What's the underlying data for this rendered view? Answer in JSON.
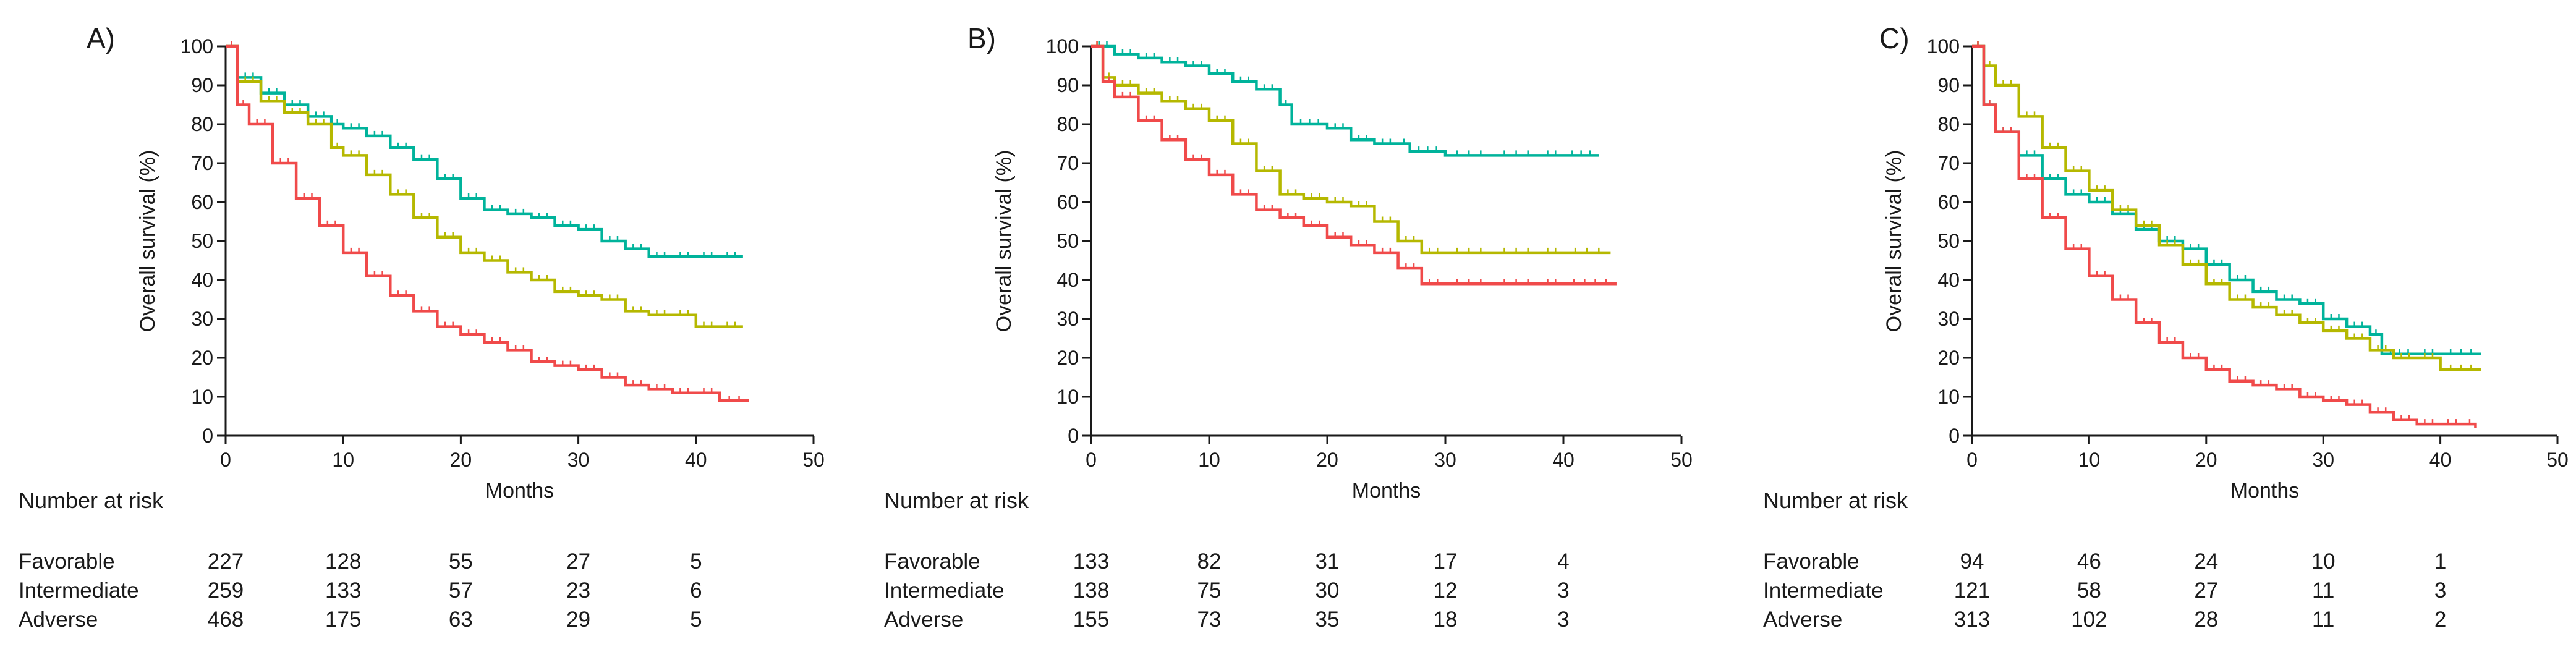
{
  "chart_data": [
    {
      "type": "line",
      "panel": "A)",
      "xlabel": "Months",
      "ylabel": "Overall survival (%)",
      "xlim": [
        0,
        50
      ],
      "ylim": [
        0,
        100
      ],
      "xticks": [
        0,
        10,
        20,
        30,
        40,
        50
      ],
      "yticks": [
        0,
        10,
        20,
        30,
        40,
        50,
        60,
        70,
        80,
        90,
        100
      ],
      "series": [
        {
          "name": "Favorable",
          "color": "#00b39b",
          "x": [
            0,
            1,
            3,
            5,
            7,
            9,
            10,
            12,
            14,
            16,
            18,
            20,
            22,
            24,
            26,
            28,
            30,
            32,
            34,
            36,
            38,
            40,
            42,
            44
          ],
          "y": [
            100,
            92,
            88,
            85,
            82,
            80,
            79,
            77,
            74,
            71,
            66,
            61,
            58,
            57,
            56,
            54,
            53,
            50,
            48,
            46,
            46,
            46,
            46,
            46
          ]
        },
        {
          "name": "Intermediate",
          "color": "#b5b800",
          "x": [
            0,
            1,
            3,
            5,
            7,
            9,
            10,
            12,
            14,
            16,
            18,
            20,
            22,
            24,
            26,
            28,
            30,
            32,
            34,
            36,
            38,
            40,
            42,
            44
          ],
          "y": [
            100,
            91,
            86,
            83,
            80,
            74,
            72,
            67,
            62,
            56,
            51,
            47,
            45,
            42,
            40,
            37,
            36,
            35,
            32,
            31,
            31,
            28,
            28,
            28
          ]
        },
        {
          "name": "Adverse",
          "color": "#f04a4a",
          "x": [
            0,
            1,
            2,
            4,
            6,
            8,
            10,
            12,
            14,
            16,
            18,
            20,
            22,
            24,
            26,
            28,
            30,
            32,
            34,
            36,
            38,
            40,
            42,
            44.5
          ],
          "y": [
            100,
            85,
            80,
            70,
            61,
            54,
            47,
            41,
            36,
            32,
            28,
            26,
            24,
            22,
            19,
            18,
            17,
            15,
            13,
            12,
            11,
            11,
            9,
            9
          ]
        }
      ],
      "risk_table": {
        "title": "Number at risk",
        "rows": [
          {
            "label": "Favorable",
            "values": [
              "227",
              "128",
              "55",
              "27",
              "5"
            ]
          },
          {
            "label": "Intermediate",
            "values": [
              "259",
              "133",
              "57",
              "23",
              "6"
            ]
          },
          {
            "label": "Adverse",
            "values": [
              "468",
              "175",
              "63",
              "29",
              "5"
            ]
          }
        ]
      }
    },
    {
      "type": "line",
      "panel": "B)",
      "xlabel": "Months",
      "ylabel": "Overall survival (%)",
      "xlim": [
        0,
        50
      ],
      "ylim": [
        0,
        100
      ],
      "xticks": [
        0,
        10,
        20,
        30,
        40,
        50
      ],
      "yticks": [
        0,
        10,
        20,
        30,
        40,
        50,
        60,
        70,
        80,
        90,
        100
      ],
      "series": [
        {
          "name": "Favorable",
          "color": "#00b39b",
          "x": [
            0,
            2,
            4,
            6,
            8,
            10,
            12,
            14,
            16,
            17,
            20,
            22,
            24,
            26,
            27,
            30,
            34,
            38,
            40,
            43
          ],
          "y": [
            100,
            98,
            97,
            96,
            95,
            93,
            91,
            89,
            85,
            80,
            79,
            76,
            75,
            75,
            73,
            72,
            72,
            72,
            72,
            72
          ]
        },
        {
          "name": "Intermediate",
          "color": "#b5b800",
          "x": [
            0,
            1,
            2,
            4,
            6,
            8,
            10,
            12,
            14,
            16,
            18,
            20,
            22,
            24,
            26,
            28,
            30,
            34,
            38,
            40,
            44
          ],
          "y": [
            100,
            92,
            90,
            88,
            86,
            84,
            81,
            75,
            68,
            62,
            61,
            60,
            59,
            55,
            50,
            47,
            47,
            47,
            47,
            47,
            47
          ]
        },
        {
          "name": "Adverse",
          "color": "#f04a4a",
          "x": [
            0,
            1,
            2,
            4,
            6,
            8,
            10,
            12,
            14,
            16,
            18,
            20,
            22,
            24,
            26,
            28,
            30,
            34,
            38,
            40,
            44.5
          ],
          "y": [
            100,
            91,
            87,
            81,
            76,
            71,
            67,
            62,
            58,
            56,
            54,
            51,
            49,
            47,
            43,
            39,
            39,
            39,
            39,
            39,
            39
          ]
        }
      ],
      "risk_table": {
        "title": "Number at risk",
        "rows": [
          {
            "label": "Favorable",
            "values": [
              "133",
              "82",
              "31",
              "17",
              "4"
            ]
          },
          {
            "label": "Intermediate",
            "values": [
              "138",
              "75",
              "30",
              "12",
              "3"
            ]
          },
          {
            "label": "Adverse",
            "values": [
              "155",
              "73",
              "35",
              "18",
              "3"
            ]
          }
        ]
      }
    },
    {
      "type": "line",
      "panel": "C)",
      "xlabel": "Months",
      "ylabel": "Overall survival (%)",
      "xlim": [
        0,
        50
      ],
      "ylim": [
        0,
        100
      ],
      "xticks": [
        0,
        10,
        20,
        30,
        40,
        50
      ],
      "yticks": [
        0,
        10,
        20,
        30,
        40,
        50,
        60,
        70,
        80,
        90,
        100
      ],
      "series": [
        {
          "name": "Favorable",
          "color": "#00b39b",
          "x": [
            0,
            1,
            2,
            4,
            6,
            8,
            10,
            12,
            14,
            16,
            18,
            20,
            22,
            24,
            26,
            28,
            30,
            32,
            34,
            35,
            38,
            40,
            43.5
          ],
          "y": [
            100,
            85,
            78,
            72,
            66,
            62,
            60,
            57,
            53,
            50,
            48,
            44,
            40,
            37,
            35,
            34,
            30,
            28,
            26,
            21,
            21,
            21,
            21
          ]
        },
        {
          "name": "Intermediate",
          "color": "#b5b800",
          "x": [
            0,
            1,
            2,
            4,
            6,
            8,
            10,
            12,
            14,
            16,
            18,
            20,
            22,
            24,
            26,
            28,
            30,
            32,
            34,
            36,
            38,
            40,
            43.5
          ],
          "y": [
            100,
            95,
            90,
            82,
            74,
            68,
            63,
            58,
            54,
            49,
            44,
            39,
            35,
            33,
            31,
            29,
            27,
            25,
            22,
            20,
            20,
            17,
            17
          ]
        },
        {
          "name": "Adverse",
          "color": "#f04a4a",
          "x": [
            0,
            1,
            2,
            4,
            6,
            8,
            10,
            12,
            14,
            16,
            18,
            20,
            22,
            24,
            26,
            28,
            30,
            32,
            34,
            36,
            38,
            40,
            42,
            43
          ],
          "y": [
            100,
            85,
            78,
            66,
            56,
            48,
            41,
            35,
            29,
            24,
            20,
            17,
            14,
            13,
            12,
            10,
            9,
            8,
            6,
            4,
            3,
            3,
            3,
            2
          ]
        }
      ],
      "risk_table": {
        "title": "Number at risk",
        "rows": [
          {
            "label": "Favorable",
            "values": [
              "94",
              "46",
              "24",
              "10",
              "1"
            ]
          },
          {
            "label": "Intermediate",
            "values": [
              "121",
              "58",
              "27",
              "11",
              "3"
            ]
          },
          {
            "label": "Adverse",
            "values": [
              "313",
              "102",
              "28",
              "11",
              "2"
            ]
          }
        ]
      }
    }
  ]
}
